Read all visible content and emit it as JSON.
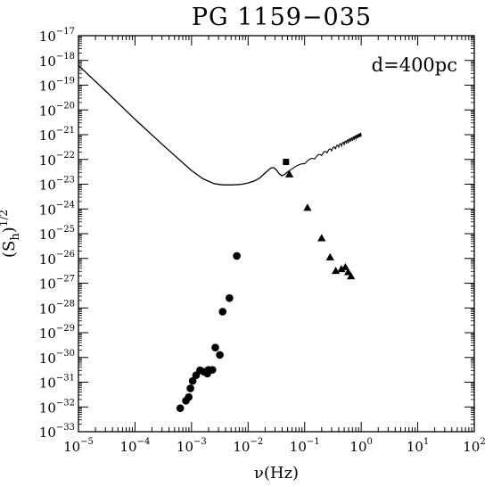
{
  "chart_data": {
    "type": "scatter",
    "title": "PG 1159−035",
    "annotation": "d=400pc",
    "xlabel": "ν(Hz)",
    "ylabel": "(S_h)^1/2",
    "x_scale": "log",
    "y_scale": "log",
    "xlim": [
      1e-05,
      100
    ],
    "ylim": [
      1e-33,
      1e-17
    ],
    "grid": false,
    "x_ticks": [
      {
        "base": "10",
        "exp": "−5"
      },
      {
        "base": "10",
        "exp": "−4"
      },
      {
        "base": "10",
        "exp": "−3"
      },
      {
        "base": "10",
        "exp": "−2"
      },
      {
        "base": "10",
        "exp": "−1"
      },
      {
        "base": "10",
        "exp": "0"
      },
      {
        "base": "10",
        "exp": "1"
      },
      {
        "base": "10",
        "exp": "2"
      }
    ],
    "y_ticks": [
      {
        "base": "10",
        "exp": "−33"
      },
      {
        "base": "10",
        "exp": "−32"
      },
      {
        "base": "10",
        "exp": "−31"
      },
      {
        "base": "10",
        "exp": "−30"
      },
      {
        "base": "10",
        "exp": "−29"
      },
      {
        "base": "10",
        "exp": "−28"
      },
      {
        "base": "10",
        "exp": "−27"
      },
      {
        "base": "10",
        "exp": "−26"
      },
      {
        "base": "10",
        "exp": "−25"
      },
      {
        "base": "10",
        "exp": "−24"
      },
      {
        "base": "10",
        "exp": "−23"
      },
      {
        "base": "10",
        "exp": "−22"
      },
      {
        "base": "10",
        "exp": "−21"
      },
      {
        "base": "10",
        "exp": "−20"
      },
      {
        "base": "10",
        "exp": "−19"
      },
      {
        "base": "10",
        "exp": "−18"
      },
      {
        "base": "10",
        "exp": "−17"
      }
    ],
    "series": [
      {
        "kind": "line",
        "log10_x": [
          -5.0,
          -4.5,
          -4.0,
          -3.5,
          -3.0,
          -2.8,
          -2.6,
          -2.45,
          -2.3,
          -2.2,
          -2.1,
          -2.0,
          -1.9,
          -1.8,
          -1.7,
          -1.6,
          -1.55,
          -1.5,
          -1.45,
          -1.4,
          -1.35,
          -1.3
        ],
        "log10_y": [
          -18.2,
          -19.28,
          -20.38,
          -21.43,
          -22.45,
          -22.78,
          -22.98,
          -23.03,
          -23.03,
          -23.02,
          -23.0,
          -22.95,
          -22.88,
          -22.76,
          -22.55,
          -22.35,
          -22.33,
          -22.42,
          -22.58,
          -22.66,
          -22.6,
          -22.5
        ]
      },
      {
        "kind": "line-wiggly",
        "log10_x": [
          -1.3,
          0.0
        ],
        "log10_y": [
          -22.5,
          -21.08
        ]
      },
      {
        "kind": "scatter",
        "marker": "circle",
        "log10_x": [
          -3.2,
          -3.1,
          -3.05,
          -3.02,
          -2.98,
          -2.92,
          -2.85,
          -2.78,
          -2.72,
          -2.7,
          -2.63,
          -2.58,
          -2.5,
          -2.45,
          -2.33,
          -2.2
        ],
        "log10_y": [
          -32.05,
          -31.75,
          -31.6,
          -31.25,
          -30.95,
          -30.72,
          -30.52,
          -30.58,
          -30.65,
          -30.5,
          -30.5,
          -29.6,
          -29.9,
          -28.15,
          -27.6,
          -25.9
        ]
      },
      {
        "kind": "scatter",
        "marker": "triangle",
        "log10_x": [
          -0.95,
          -0.7,
          -0.55,
          -0.45,
          -0.35,
          -0.28,
          -0.23,
          -0.18
        ],
        "log10_y": [
          -23.95,
          -25.18,
          -25.95,
          -26.5,
          -26.43,
          -26.35,
          -26.55,
          -26.72
        ]
      },
      {
        "kind": "scatter",
        "marker": "square",
        "log10_x": [
          -1.33
        ],
        "log10_y": [
          -22.1
        ]
      },
      {
        "kind": "scatter",
        "marker": "triangle",
        "log10_x": [
          -1.27
        ],
        "log10_y": [
          -22.6
        ]
      }
    ]
  }
}
